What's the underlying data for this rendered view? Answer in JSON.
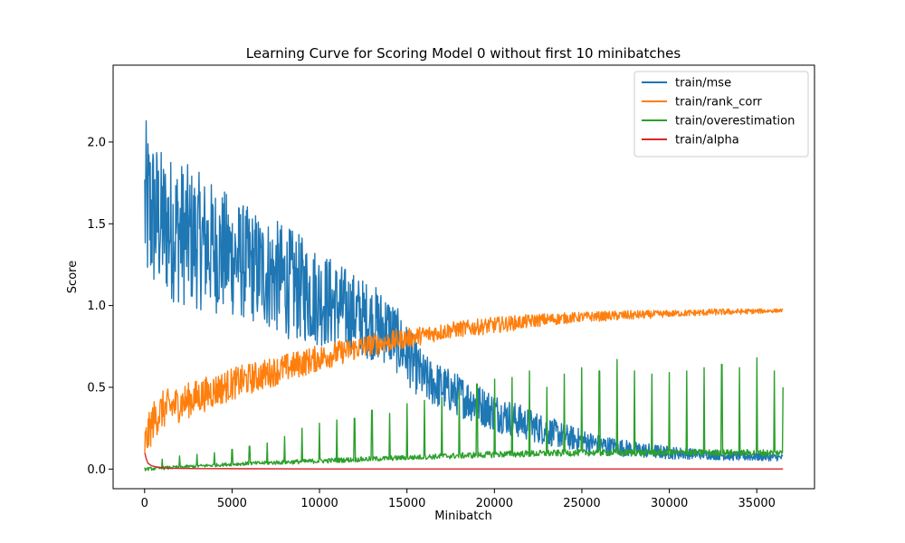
{
  "chart_data": {
    "type": "line",
    "title": "Learning Curve for Scoring Model 0 without first 10 minibatches",
    "xlabel": "Minibatch",
    "ylabel": "Score",
    "xlim": [
      -1800,
      38300
    ],
    "ylim": [
      -0.12,
      2.47
    ],
    "xticks": [
      0,
      5000,
      10000,
      15000,
      20000,
      25000,
      30000,
      35000
    ],
    "xtick_labels": [
      "0",
      "5000",
      "10000",
      "15000",
      "20000",
      "25000",
      "30000",
      "35000"
    ],
    "yticks": [
      0.0,
      0.5,
      1.0,
      1.5,
      2.0
    ],
    "ytick_labels": [
      "0.0",
      "0.5",
      "1.0",
      "1.5",
      "2.0"
    ],
    "grid": false,
    "legend_position": "top-right",
    "series": [
      {
        "name": "train/mse",
        "color": "#1f77b4",
        "x": [
          10,
          1000,
          2000,
          4000,
          6000,
          8000,
          10000,
          12000,
          14000,
          16000,
          18000,
          20000,
          22000,
          24000,
          26000,
          28000,
          30000,
          32000,
          34000,
          36500
        ],
        "y_mean": [
          1.6,
          1.5,
          1.45,
          1.35,
          1.25,
          1.15,
          1.05,
          0.95,
          0.85,
          0.55,
          0.45,
          0.35,
          0.27,
          0.2,
          0.15,
          0.12,
          0.1,
          0.09,
          0.08,
          0.07
        ],
        "y_spread": [
          0.55,
          0.45,
          0.45,
          0.4,
          0.35,
          0.35,
          0.3,
          0.25,
          0.22,
          0.15,
          0.13,
          0.12,
          0.1,
          0.08,
          0.06,
          0.05,
          0.04,
          0.03,
          0.03,
          0.02
        ]
      },
      {
        "name": "train/rank_corr",
        "color": "#ff7f0e",
        "x": [
          10,
          500,
          1000,
          2500,
          5000,
          7500,
          10000,
          12500,
          15000,
          17500,
          20000,
          22500,
          25000,
          27500,
          30000,
          32500,
          35000,
          36500
        ],
        "y_mean": [
          0.15,
          0.3,
          0.36,
          0.42,
          0.52,
          0.6,
          0.68,
          0.75,
          0.8,
          0.85,
          0.88,
          0.91,
          0.93,
          0.94,
          0.95,
          0.96,
          0.965,
          0.97
        ],
        "y_spread": [
          0.12,
          0.12,
          0.12,
          0.11,
          0.1,
          0.09,
          0.08,
          0.07,
          0.06,
          0.05,
          0.05,
          0.04,
          0.03,
          0.03,
          0.02,
          0.02,
          0.015,
          0.01
        ]
      },
      {
        "name": "train/overestimation",
        "color": "#2ca02c",
        "x": [
          10,
          5000,
          10000,
          15000,
          20000,
          25000,
          30000,
          35000,
          36500
        ],
        "y_mean": [
          0.0,
          0.03,
          0.05,
          0.07,
          0.09,
          0.1,
          0.1,
          0.1,
          0.1
        ],
        "y_spread": [
          0.01,
          0.01,
          0.015,
          0.015,
          0.02,
          0.02,
          0.02,
          0.02,
          0.02
        ],
        "spike_x": [
          1000,
          2000,
          3000,
          4000,
          5000,
          6000,
          7000,
          8000,
          9000,
          10000,
          11000,
          12000,
          13000,
          14000,
          15000,
          16000,
          17000,
          18000,
          19000,
          20000,
          21000,
          22000,
          23000,
          24000,
          25000,
          26000,
          27000,
          28000,
          29000,
          30000,
          31000,
          32000,
          33000,
          34000,
          35000,
          36000,
          36500
        ],
        "spike_y": [
          0.06,
          0.08,
          0.09,
          0.1,
          0.12,
          0.14,
          0.16,
          0.2,
          0.25,
          0.28,
          0.3,
          0.31,
          0.36,
          0.34,
          0.4,
          0.42,
          0.44,
          0.48,
          0.52,
          0.55,
          0.56,
          0.6,
          0.5,
          0.58,
          0.62,
          0.6,
          0.67,
          0.6,
          0.58,
          0.59,
          0.6,
          0.62,
          0.64,
          0.62,
          0.68,
          0.6,
          0.5
        ]
      },
      {
        "name": "train/alpha",
        "color": "#d62728",
        "x": [
          10,
          100,
          200,
          400,
          800,
          1500,
          3000,
          10000,
          36500
        ],
        "y": [
          0.1,
          0.06,
          0.035,
          0.02,
          0.01,
          0.005,
          0.003,
          0.001,
          0.0005
        ]
      }
    ]
  }
}
